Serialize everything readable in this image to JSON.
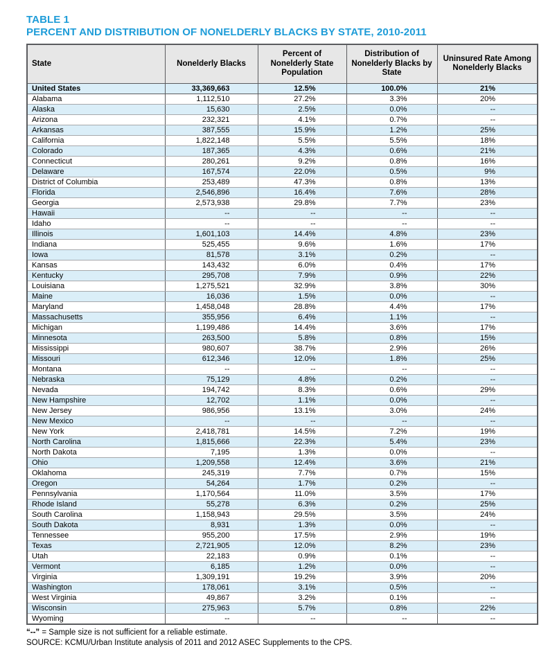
{
  "page": {
    "table_label": "TABLE 1",
    "title": "PERCENT AND DISTRIBUTION OF NONELDERLY BLACKS BY STATE, 2010-2011"
  },
  "colors": {
    "title_blue": "#1e9cd8",
    "header_gray": "#e7e7e7",
    "row_alt_blue": "#daeef8",
    "border_dark": "#5a5b5e",
    "border_light": "#a6a8ab"
  },
  "table": {
    "columns": [
      "State",
      "Nonelderly Blacks",
      "Percent of Nonelderly State Population",
      "Distribution of Nonelderly Blacks by State",
      "Uninsured Rate Among Nonelderly Blacks"
    ],
    "summary_row_index": 0,
    "rows": [
      [
        "United States",
        "33,369,663",
        "12.5%",
        "100.0%",
        "21%"
      ],
      [
        "Alabama",
        "1,112,510",
        "27.2%",
        "3.3%",
        "20%"
      ],
      [
        "Alaska",
        "15,630",
        "2.5%",
        "0.0%",
        "--"
      ],
      [
        "Arizona",
        "232,321",
        "4.1%",
        "0.7%",
        "--"
      ],
      [
        "Arkansas",
        "387,555",
        "15.9%",
        "1.2%",
        "25%"
      ],
      [
        "California",
        "1,822,148",
        "5.5%",
        "5.5%",
        "18%"
      ],
      [
        "Colorado",
        "187,365",
        "4.3%",
        "0.6%",
        "21%"
      ],
      [
        "Connecticut",
        "280,261",
        "9.2%",
        "0.8%",
        "16%"
      ],
      [
        "Delaware",
        "167,574",
        "22.0%",
        "0.5%",
        "9%"
      ],
      [
        "District of Columbia",
        "253,489",
        "47.3%",
        "0.8%",
        "13%"
      ],
      [
        "Florida",
        "2,546,896",
        "16.4%",
        "7.6%",
        "28%"
      ],
      [
        "Georgia",
        "2,573,938",
        "29.8%",
        "7.7%",
        "23%"
      ],
      [
        "Hawaii",
        "--",
        "--",
        "--",
        "--"
      ],
      [
        "Idaho",
        "--",
        "--",
        "--",
        "--"
      ],
      [
        "Illinois",
        "1,601,103",
        "14.4%",
        "4.8%",
        "23%"
      ],
      [
        "Indiana",
        "525,455",
        "9.6%",
        "1.6%",
        "17%"
      ],
      [
        "Iowa",
        "81,578",
        "3.1%",
        "0.2%",
        "--"
      ],
      [
        "Kansas",
        "143,432",
        "6.0%",
        "0.4%",
        "17%"
      ],
      [
        "Kentucky",
        "295,708",
        "7.9%",
        "0.9%",
        "22%"
      ],
      [
        "Louisiana",
        "1,275,521",
        "32.9%",
        "3.8%",
        "30%"
      ],
      [
        "Maine",
        "16,036",
        "1.5%",
        "0.0%",
        "--"
      ],
      [
        "Maryland",
        "1,458,048",
        "28.8%",
        "4.4%",
        "17%"
      ],
      [
        "Massachusetts",
        "355,956",
        "6.4%",
        "1.1%",
        "--"
      ],
      [
        "Michigan",
        "1,199,486",
        "14.4%",
        "3.6%",
        "17%"
      ],
      [
        "Minnesota",
        "263,500",
        "5.8%",
        "0.8%",
        "15%"
      ],
      [
        "Mississippi",
        "980,607",
        "38.7%",
        "2.9%",
        "26%"
      ],
      [
        "Missouri",
        "612,346",
        "12.0%",
        "1.8%",
        "25%"
      ],
      [
        "Montana",
        "--",
        "--",
        "--",
        "--"
      ],
      [
        "Nebraska",
        "75,129",
        "4.8%",
        "0.2%",
        "--"
      ],
      [
        "Nevada",
        "194,742",
        "8.3%",
        "0.6%",
        "29%"
      ],
      [
        "New Hampshire",
        "12,702",
        "1.1%",
        "0.0%",
        "--"
      ],
      [
        "New Jersey",
        "986,956",
        "13.1%",
        "3.0%",
        "24%"
      ],
      [
        "New Mexico",
        "--",
        "--",
        "--",
        "--"
      ],
      [
        "New York",
        "2,418,781",
        "14.5%",
        "7.2%",
        "19%"
      ],
      [
        "North Carolina",
        "1,815,666",
        "22.3%",
        "5.4%",
        "23%"
      ],
      [
        "North Dakota",
        "7,195",
        "1.3%",
        "0.0%",
        "--"
      ],
      [
        "Ohio",
        "1,209,558",
        "12.4%",
        "3.6%",
        "21%"
      ],
      [
        "Oklahoma",
        "245,319",
        "7.7%",
        "0.7%",
        "15%"
      ],
      [
        "Oregon",
        "54,264",
        "1.7%",
        "0.2%",
        "--"
      ],
      [
        "Pennsylvania",
        "1,170,564",
        "11.0%",
        "3.5%",
        "17%"
      ],
      [
        "Rhode Island",
        "55,278",
        "6.3%",
        "0.2%",
        "25%"
      ],
      [
        "South Carolina",
        "1,158,943",
        "29.5%",
        "3.5%",
        "24%"
      ],
      [
        "South Dakota",
        "8,931",
        "1.3%",
        "0.0%",
        "--"
      ],
      [
        "Tennessee",
        "955,200",
        "17.5%",
        "2.9%",
        "19%"
      ],
      [
        "Texas",
        "2,721,905",
        "12.0%",
        "8.2%",
        "23%"
      ],
      [
        "Utah",
        "22,183",
        "0.9%",
        "0.1%",
        "--"
      ],
      [
        "Vermont",
        "6,185",
        "1.2%",
        "0.0%",
        "--"
      ],
      [
        "Virginia",
        "1,309,191",
        "19.2%",
        "3.9%",
        "20%"
      ],
      [
        "Washington",
        "178,061",
        "3.1%",
        "0.5%",
        "--"
      ],
      [
        "West Virginia",
        "49,867",
        "3.2%",
        "0.1%",
        "--"
      ],
      [
        "Wisconsin",
        "275,963",
        "5.7%",
        "0.8%",
        "22%"
      ],
      [
        "Wyoming",
        "--",
        "--",
        "--",
        "--"
      ]
    ]
  },
  "footnotes": {
    "dash_symbol": "“--”",
    "dash_note": " = Sample size is not sufficient for a reliable estimate.",
    "source": "SOURCE: KCMU/Urban Institute analysis of 2011 and 2012 ASEC Supplements to the CPS."
  }
}
